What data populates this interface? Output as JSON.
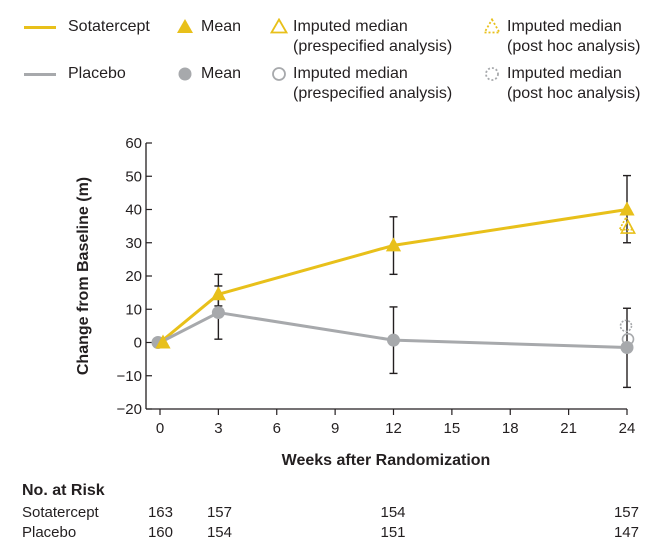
{
  "legend": {
    "row1": {
      "series": "Sotatercept",
      "mean": "Mean",
      "imp_pre_1": "Imputed median",
      "imp_pre_2": "(prespecified analysis)",
      "imp_post_1": "Imputed median",
      "imp_post_2": "(post hoc analysis)"
    },
    "row2": {
      "series": "Placebo",
      "mean": "Mean",
      "imp_pre_1": "Imputed median",
      "imp_pre_2": "(prespecified analysis)",
      "imp_post_1": "Imputed median",
      "imp_post_2": "(post hoc analysis)"
    }
  },
  "colors": {
    "sotatercept": "#e8c01a",
    "placebo": "#a7a9ac",
    "axis": "#231f20"
  },
  "chart_data": {
    "type": "line",
    "xlabel": "Weeks after Randomization",
    "ylabel": "Change from Baseline (m)",
    "xlim": [
      0,
      24
    ],
    "ylim": [
      -20,
      60
    ],
    "xticks": [
      0,
      3,
      6,
      9,
      12,
      15,
      18,
      21,
      24
    ],
    "yticks": [
      -20,
      -10,
      0,
      10,
      20,
      30,
      40,
      50,
      60
    ],
    "grid": false,
    "legend": "top",
    "series": [
      {
        "name": "Sotatercept",
        "color": "#e8c01a",
        "marker": "triangle",
        "x": [
          0,
          3,
          12,
          24
        ],
        "mean": [
          0,
          14.5,
          29.2,
          40.0
        ],
        "error_low": [
          null,
          11.0,
          20.5,
          30.0
        ],
        "error_high": [
          null,
          20.5,
          37.8,
          50.2
        ],
        "imputed_median_prespecified": {
          "x": 24,
          "y": 34.5
        },
        "imputed_median_post_hoc": {
          "x": 24,
          "y": 35.5
        }
      },
      {
        "name": "Placebo",
        "color": "#a7a9ac",
        "marker": "circle",
        "x": [
          0,
          3,
          12,
          24
        ],
        "mean": [
          0,
          9.0,
          0.7,
          -1.5
        ],
        "error_low": [
          null,
          1.0,
          -9.3,
          -13.5
        ],
        "error_high": [
          null,
          17.0,
          10.7,
          10.3
        ],
        "imputed_median_prespecified": {
          "x": 24,
          "y": 1.0
        },
        "imputed_median_post_hoc": {
          "x": 24,
          "y": 5.0
        }
      }
    ]
  },
  "at_risk": {
    "title": "No. at Risk",
    "rows": [
      {
        "label": "Sotatercept",
        "values": [
          "163",
          "157",
          "154",
          "157"
        ]
      },
      {
        "label": "Placebo",
        "values": [
          "160",
          "154",
          "151",
          "147"
        ]
      }
    ]
  }
}
